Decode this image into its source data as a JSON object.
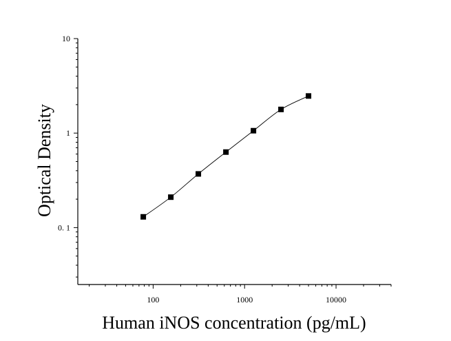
{
  "chart_data": {
    "type": "scatter",
    "title": "",
    "xlabel": "Human iNOS concentration (pg/mL)",
    "ylabel": "Optical Density",
    "x_scale": "log",
    "y_scale": "log",
    "xlim": [
      15,
      40000
    ],
    "ylim": [
      0.025,
      10
    ],
    "x_ticks": [
      {
        "value": 100,
        "label": "100"
      },
      {
        "value": 1000,
        "label": "1000"
      },
      {
        "value": 10000,
        "label": "10000"
      }
    ],
    "y_ticks": [
      {
        "value": 0.1,
        "label": "0. 1"
      },
      {
        "value": 1,
        "label": "1"
      },
      {
        "value": 10,
        "label": "10"
      }
    ],
    "grid": false,
    "legend": "none",
    "series": [
      {
        "x": [
          78,
          156,
          312,
          625,
          1250,
          2500,
          5000
        ],
        "y": [
          0.13,
          0.21,
          0.37,
          0.63,
          1.06,
          1.78,
          2.47
        ]
      }
    ],
    "fit_curve": true,
    "colors": {
      "marker": "#000000",
      "line": "#000000",
      "axis": "#000000"
    }
  }
}
